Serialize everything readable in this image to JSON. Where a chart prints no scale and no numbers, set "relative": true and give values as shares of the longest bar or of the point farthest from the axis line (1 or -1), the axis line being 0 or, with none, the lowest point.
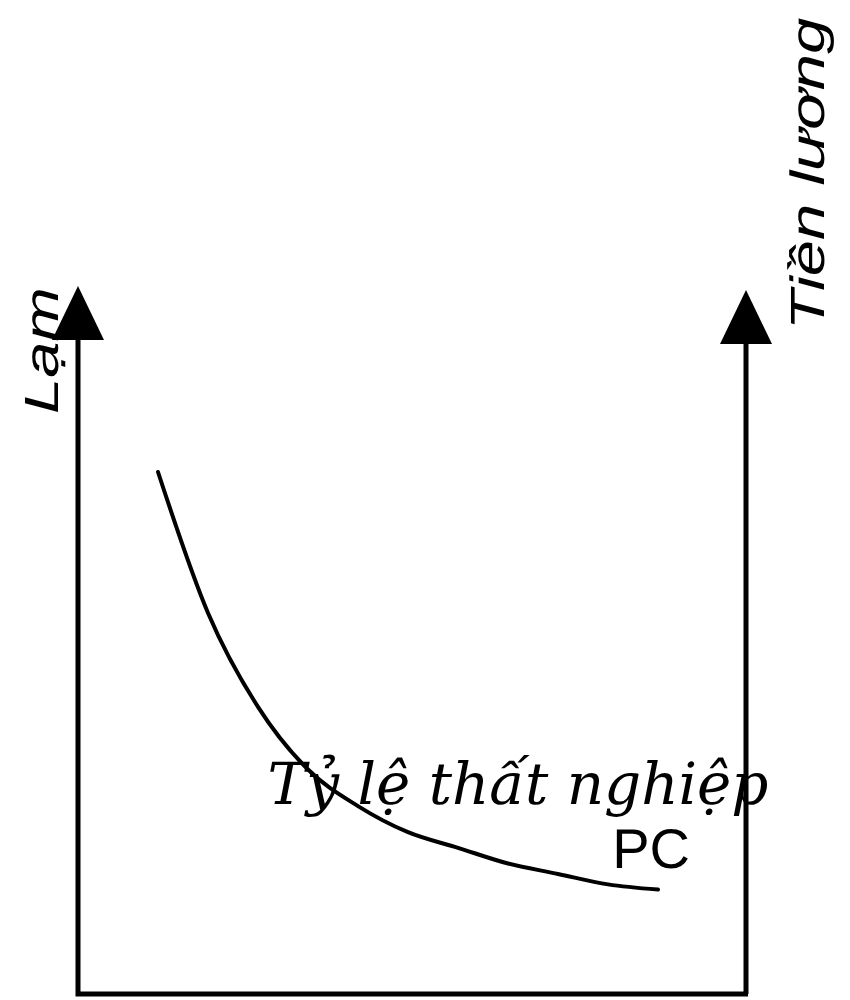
{
  "chart_data": {
    "type": "line",
    "ylabel": "Lạm",
    "y2label": "Tiền lương",
    "xlabel": "Tỷ lệ thất nghiệp",
    "relative": true,
    "categories": [
      null,
      null,
      null,
      null,
      null,
      null,
      null,
      null,
      null,
      null,
      null
    ],
    "series": [
      {
        "name": "PC",
        "color": "#000000",
        "values": [
          1,
          0.73,
          0.55,
          0.43,
          0.36,
          0.31,
          0.28,
          0.25,
          0.23,
          0.21,
          0.2
        ]
      }
    ]
  }
}
